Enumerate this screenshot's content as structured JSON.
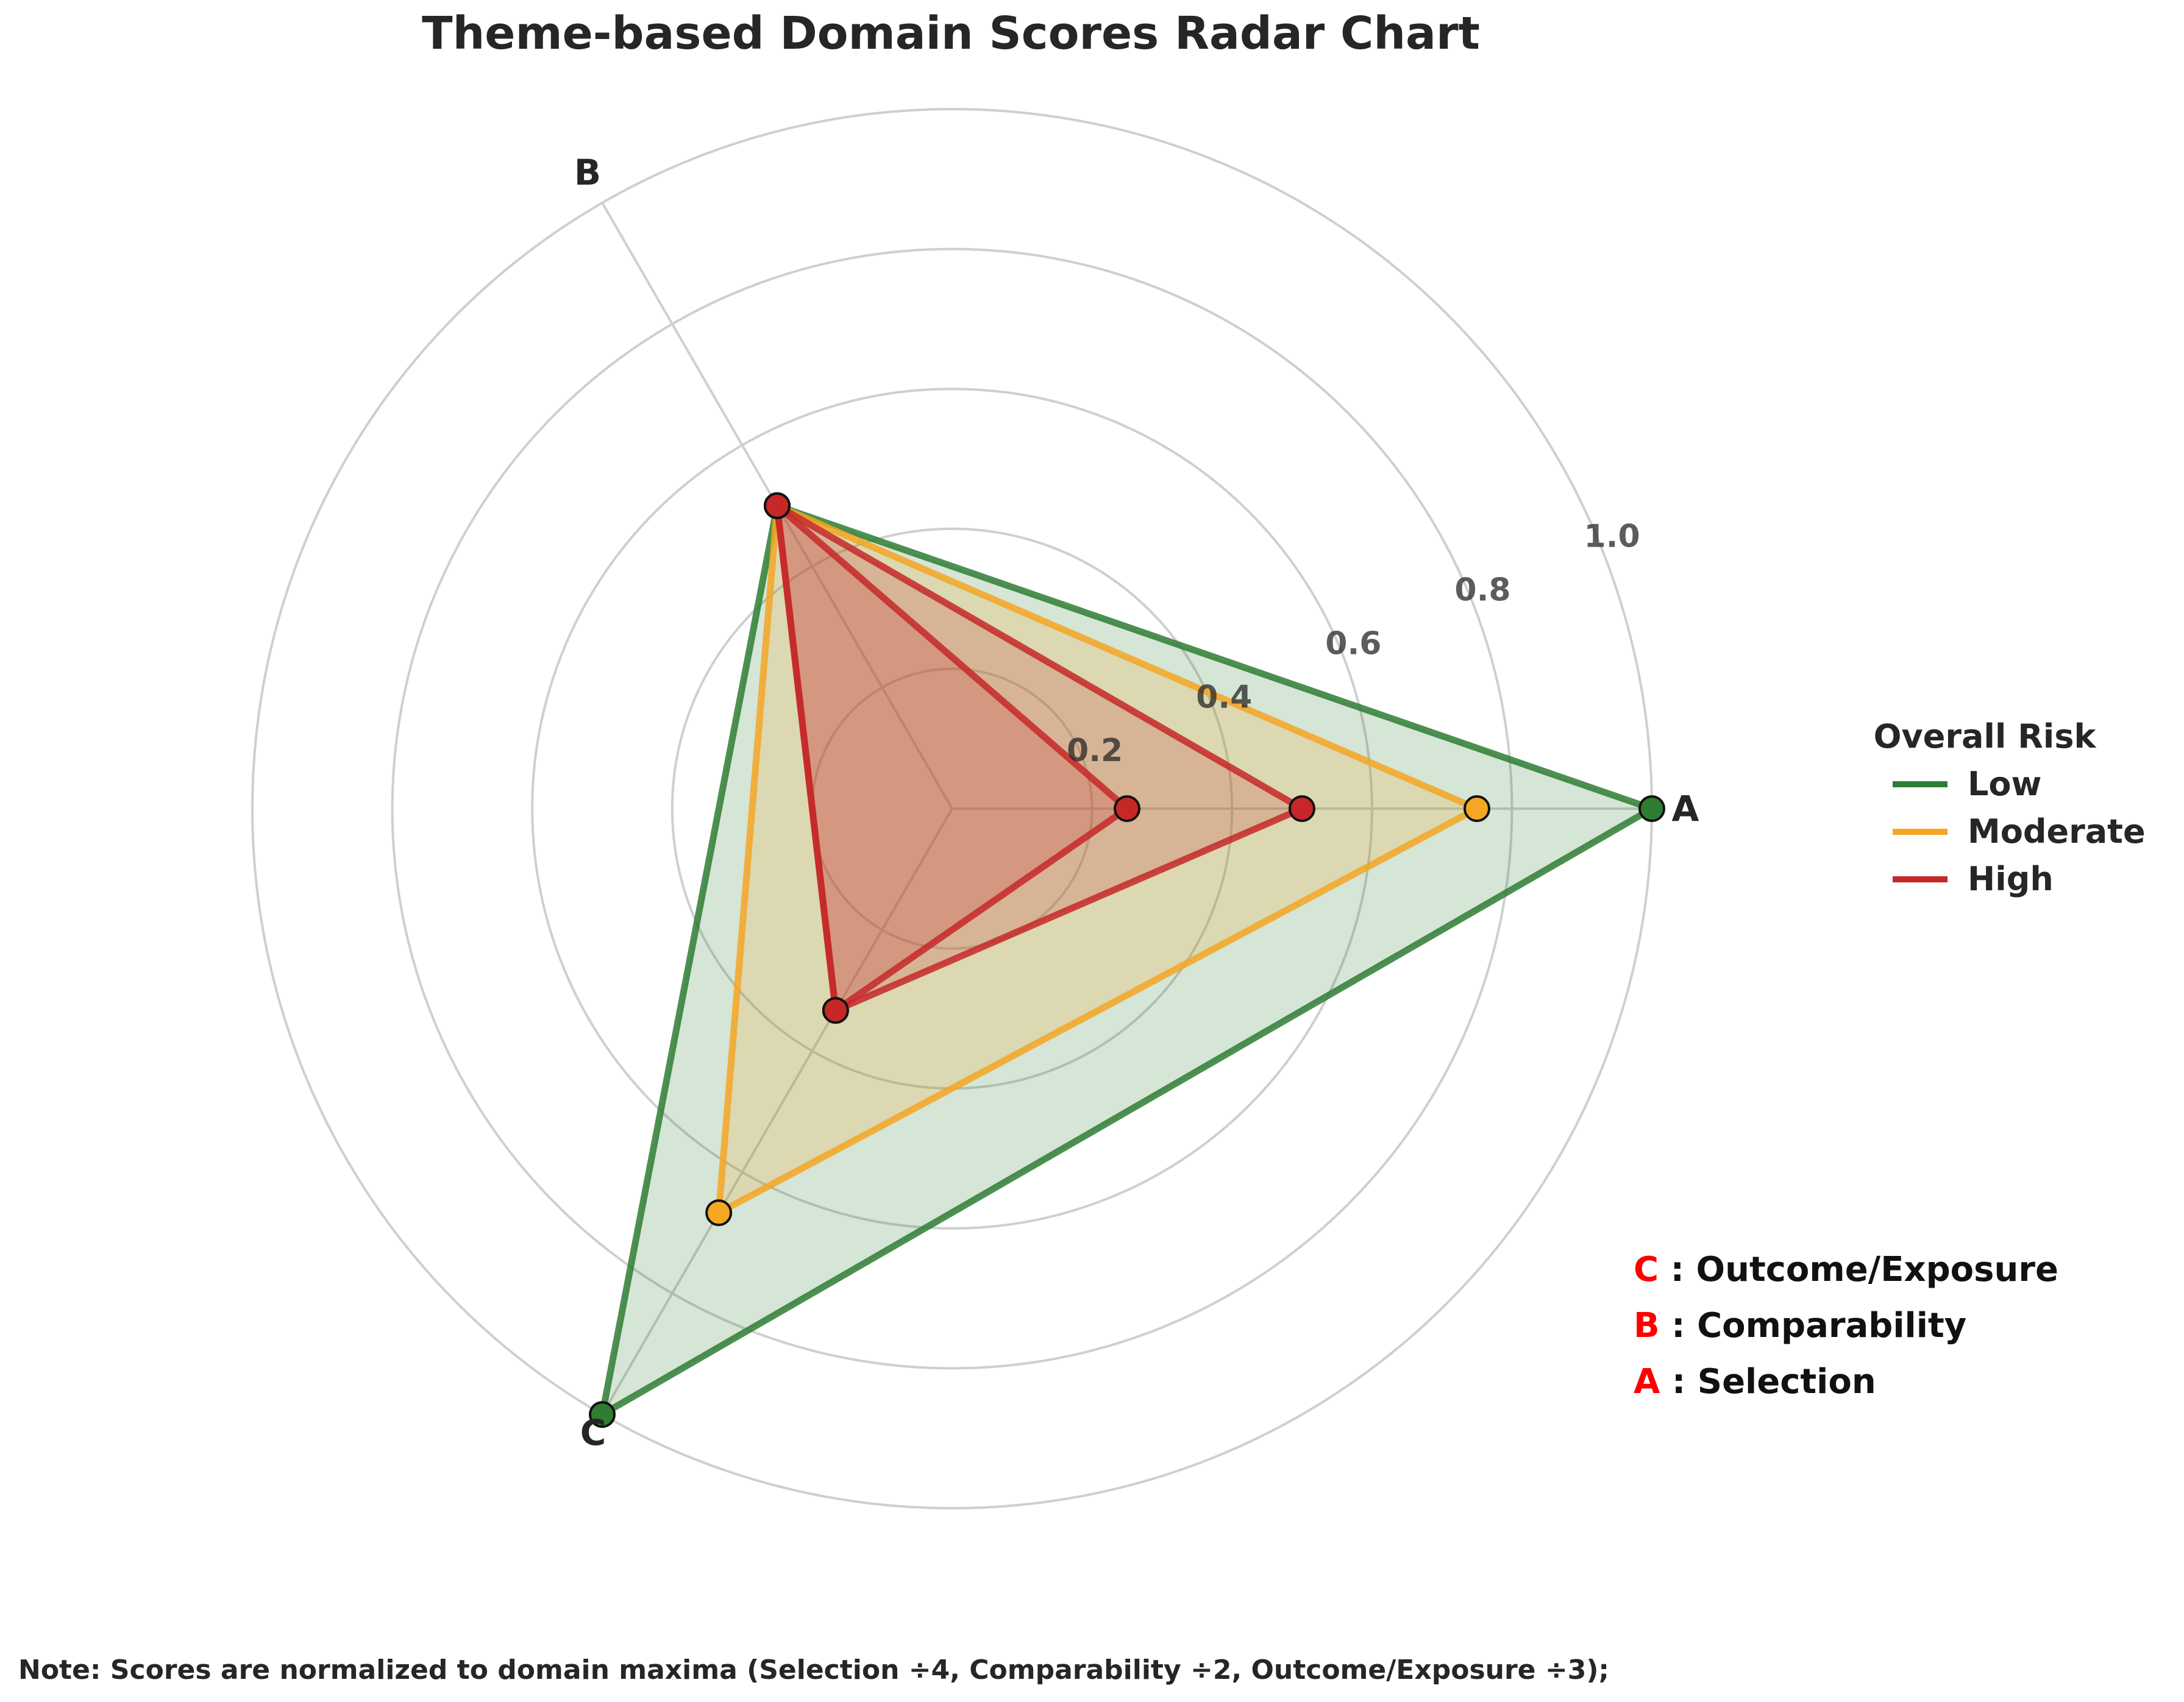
{
  "chart_data": {
    "type": "radar",
    "title": "Theme-based Domain Scores Radar Chart",
    "axes": [
      "A",
      "B",
      "C"
    ],
    "radial_ticks": [
      0.2,
      0.4,
      0.6,
      0.8,
      1.0
    ],
    "radial_tick_labels": [
      "0.2",
      "0.4",
      "0.6",
      "0.8",
      "1.0"
    ],
    "rlim": [
      0,
      1.0
    ],
    "grid": true,
    "legend": {
      "title": "Overall Risk",
      "placement": "right"
    },
    "series": [
      {
        "name": "Low",
        "color": "#2e7d32",
        "values": [
          1.0,
          0.5,
          1.0
        ]
      },
      {
        "name": "Moderate",
        "color": "#f5a623",
        "values": [
          0.75,
          0.5,
          0.667
        ]
      },
      {
        "name": "High",
        "color": "#c62828",
        "values": [
          0.5,
          0.5,
          0.333
        ]
      },
      {
        "name": "High",
        "color": "#c62828",
        "values": [
          0.25,
          0.5,
          0.333
        ]
      }
    ],
    "axis_key": [
      {
        "letter": "C",
        "text": " : Outcome/Exposure"
      },
      {
        "letter": "B",
        "text": " : Comparability"
      },
      {
        "letter": "A",
        "text": " : Selection"
      }
    ],
    "key_letter_color": "#ff0000",
    "note": "Note: Scores are normalized to domain maxima (Selection ÷4, Comparability ÷2, Outcome/Exposure ÷3);"
  }
}
